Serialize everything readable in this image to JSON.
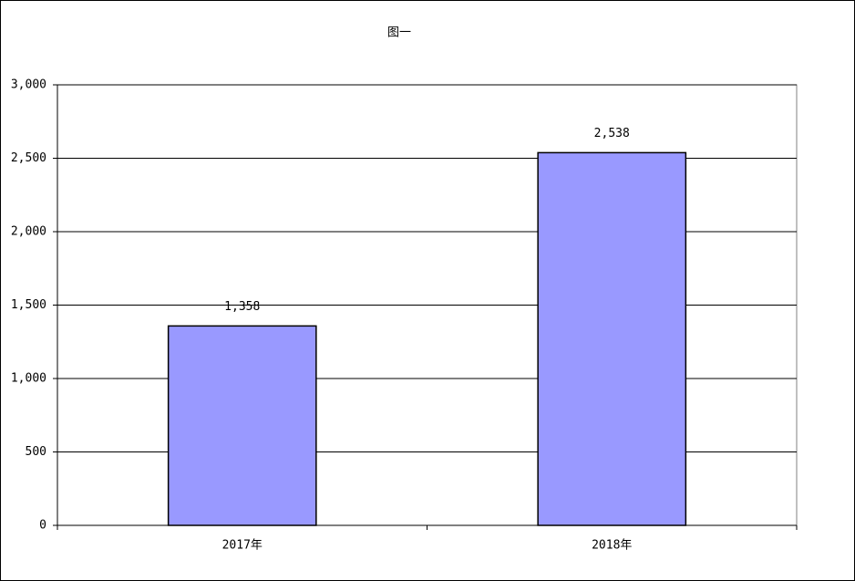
{
  "chart_data": {
    "type": "bar",
    "title": "图一",
    "categories": [
      "2017年",
      "2018年"
    ],
    "values": [
      1358,
      2538
    ],
    "value_labels": [
      "1,358",
      "2,538"
    ],
    "color": "#9999ff",
    "ylim": [
      0,
      3000
    ],
    "yticks": [
      0,
      500,
      {
        "value": 1000,
        "label": "1,000"
      },
      {
        "value": 1500,
        "label": "1,500"
      },
      {
        "value": 2000,
        "label": "2,000"
      },
      {
        "value": 2500,
        "label": "2,500"
      },
      {
        "value": 3000,
        "label": "3,000"
      }
    ],
    "grid": true
  }
}
